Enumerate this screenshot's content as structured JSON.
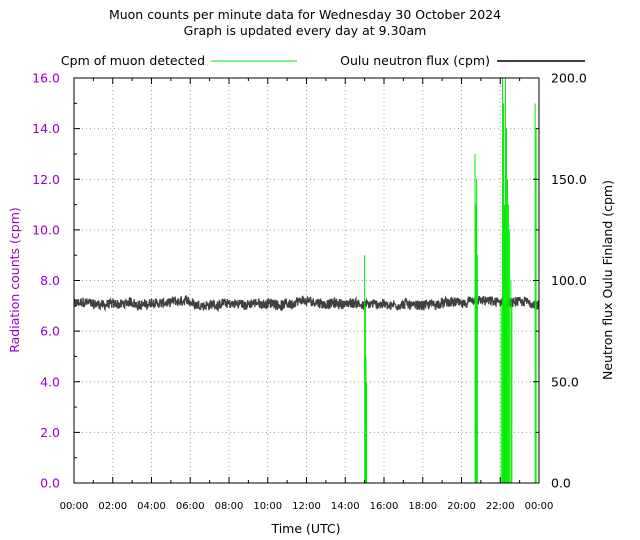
{
  "chart_data": {
    "type": "line",
    "title": "Muon counts per minute data for Wednesday 30 October 2024",
    "subtitle": "Graph is updated every day at 9.30am",
    "xlabel": "Time (UTC)",
    "ylabel_left": "Radiation counts (cpm)",
    "ylabel_right": "Neutron flux Oulu Finland (cpm)",
    "xticks": [
      "00:00",
      "02:00",
      "04:00",
      "06:00",
      "08:00",
      "10:00",
      "12:00",
      "14:00",
      "16:00",
      "18:00",
      "20:00",
      "22:00",
      "00:00"
    ],
    "xlim_hours": [
      0,
      24
    ],
    "ylim_left": [
      0,
      16
    ],
    "ylim_right": [
      0,
      200
    ],
    "yticks_left": [
      "0.0",
      "2.0",
      "4.0",
      "6.0",
      "8.0",
      "10.0",
      "12.0",
      "14.0",
      "16.0"
    ],
    "yticks_right": [
      "0.0",
      "50.0",
      "100.0",
      "150.0",
      "200.0"
    ],
    "grid": true,
    "legend_position": "top",
    "colors": {
      "muon": "#00ee00",
      "neutron": "#404040",
      "left_axis": "#9400d3"
    },
    "series": [
      {
        "name": "Cpm of muon detected",
        "axis": "left",
        "baseline": 0,
        "spikes": [
          {
            "hour": 15.0,
            "value": 9.0
          },
          {
            "hour": 15.04,
            "value": 7.0
          },
          {
            "hour": 15.07,
            "value": 5.0
          },
          {
            "hour": 15.1,
            "value": 4.0
          },
          {
            "hour": 20.7,
            "value": 13.0
          },
          {
            "hour": 20.74,
            "value": 11.0
          },
          {
            "hour": 20.78,
            "value": 12.0
          },
          {
            "hour": 20.82,
            "value": 9.0
          },
          {
            "hour": 22.05,
            "value": 7.0
          },
          {
            "hour": 22.12,
            "value": 16.0
          },
          {
            "hour": 22.17,
            "value": 15.0
          },
          {
            "hour": 22.22,
            "value": 11.0
          },
          {
            "hour": 22.27,
            "value": 16.0
          },
          {
            "hour": 22.32,
            "value": 14.0
          },
          {
            "hour": 22.37,
            "value": 12.0
          },
          {
            "hour": 22.42,
            "value": 11.0
          },
          {
            "hour": 22.47,
            "value": 10.0
          },
          {
            "hour": 22.55,
            "value": 8.0
          },
          {
            "hour": 22.6,
            "value": 7.0
          },
          {
            "hour": 23.8,
            "value": 15.0
          },
          {
            "hour": 23.85,
            "value": 14.0
          }
        ]
      },
      {
        "name": "Oulu neutron flux (cpm)",
        "axis": "right",
        "mean": 88.5,
        "noise_amplitude": 3
      }
    ]
  }
}
